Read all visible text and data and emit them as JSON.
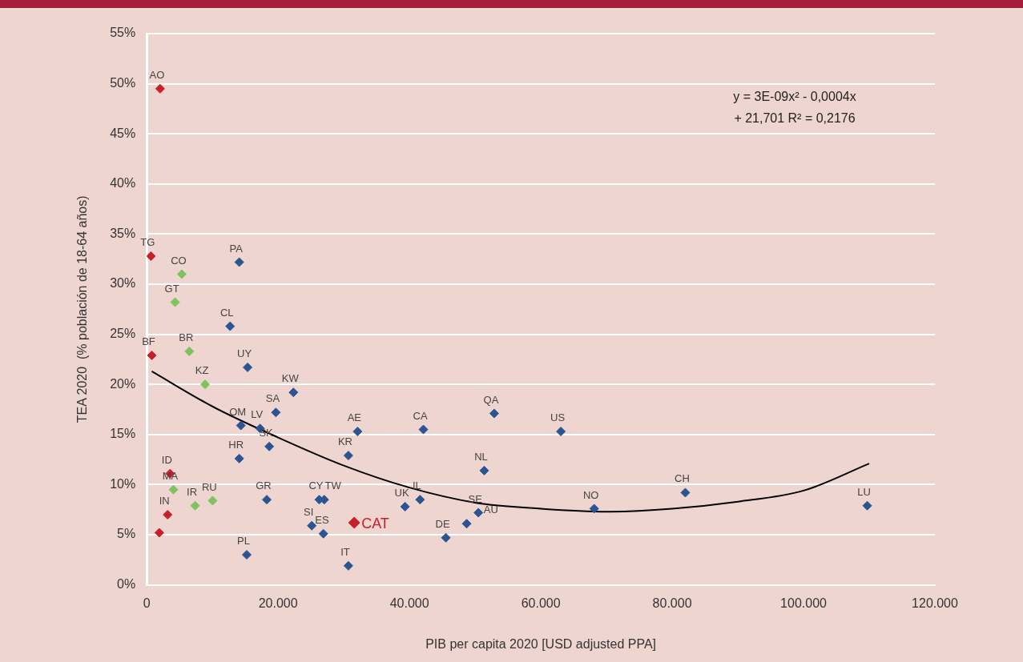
{
  "chart_data": {
    "type": "scatter",
    "xlabel": "PIB per capita 2020 [USD adjusted PPA]",
    "ylabel": "TEA 2020  (% población de 18-64 años)",
    "xlim": [
      0,
      120000
    ],
    "xticks": [
      {
        "value": 0,
        "label": "0"
      },
      {
        "value": 20000,
        "label": "20.000"
      },
      {
        "value": 40000,
        "label": "40.000"
      },
      {
        "value": 60000,
        "label": "60.000"
      },
      {
        "value": 80000,
        "label": "80.000"
      },
      {
        "value": 100000,
        "label": "100.000"
      },
      {
        "value": 120000,
        "label": "120.000"
      }
    ],
    "ylim": [
      0,
      55
    ],
    "yticks": [
      {
        "value": 0,
        "label": "0%"
      },
      {
        "value": 5,
        "label": "5%"
      },
      {
        "value": 10,
        "label": "10%"
      },
      {
        "value": 15,
        "label": "15%"
      },
      {
        "value": 20,
        "label": "20%"
      },
      {
        "value": 25,
        "label": "25%"
      },
      {
        "value": 30,
        "label": "30%"
      },
      {
        "value": 35,
        "label": "35%"
      },
      {
        "value": 40,
        "label": "40%"
      },
      {
        "value": 45,
        "label": "45%"
      },
      {
        "value": 50,
        "label": "50%"
      },
      {
        "value": 55,
        "label": "55%"
      }
    ],
    "grid": "y",
    "legend": false,
    "marker": "diamond",
    "annotations": [
      "y = 3E-09x² - 0,0004x\n+ 21,701 R² = 0,2176"
    ],
    "series": [
      {
        "color": "#c8202a",
        "x": [
          2030,
          630,
          760,
          3550,
          3170,
          1900
        ],
        "values": [
          49.5,
          32.8,
          22.9,
          11.1,
          7.0,
          5.2
        ],
        "value_labels": [
          "AO",
          "TG",
          "BF",
          "ID",
          "IN",
          null
        ]
      },
      {
        "color": "#7fc35f",
        "x": [
          5330,
          4310,
          6470,
          8880,
          4060,
          7360,
          10020
        ],
        "values": [
          31.0,
          28.2,
          23.3,
          20.0,
          9.5,
          7.9,
          8.4
        ],
        "value_labels": [
          "CO",
          "GT",
          "BR",
          "KZ",
          "MA",
          "IR",
          "RU"
        ]
      },
      {
        "color": "#2a5592",
        "x": [
          14080,
          12690,
          15350,
          22330,
          19660,
          14330,
          17250,
          18650,
          14080,
          18270,
          26260,
          27020,
          25120,
          26890,
          15220,
          30700,
          30700,
          32090,
          42120,
          52900,
          63050,
          51380,
          41610,
          39330,
          50490,
          48710,
          45540,
          68120,
          82000,
          109700
        ],
        "values": [
          32.2,
          25.8,
          21.7,
          19.2,
          17.2,
          15.9,
          15.6,
          13.8,
          12.6,
          8.5,
          8.5,
          8.5,
          5.9,
          5.1,
          3.0,
          1.9,
          12.9,
          15.3,
          15.5,
          17.1,
          15.3,
          11.4,
          8.5,
          7.8,
          7.2,
          6.1,
          4.7,
          7.6,
          9.2,
          7.9
        ],
        "value_labels": [
          "PA",
          "CL",
          "UY",
          "KW",
          "SA",
          "OM",
          "LV",
          "SK",
          "HR",
          "GR",
          "CY",
          "TW",
          "SI",
          "ES",
          "PL",
          "IT",
          "KR",
          "AE",
          "CA",
          "QA",
          "US",
          "NL",
          "IL",
          "UK",
          "SE",
          "AU",
          "DE",
          "NO",
          "CH",
          "LU"
        ]
      },
      {
        "name": "CAT",
        "color": "#c8202a",
        "x": [
          31590
        ],
        "values": [
          6.2
        ]
      },
      {
        "type": "line",
        "color": "#000000",
        "marker": "none",
        "x": [
          760,
          10000,
          20000,
          30000,
          40000,
          50000,
          60000,
          70000,
          80000,
          90000,
          100000,
          110000
        ],
        "values": [
          21.3,
          17.8,
          14.7,
          11.9,
          9.7,
          8.2,
          7.6,
          7.3,
          7.6,
          8.3,
          9.4,
          12.1
        ]
      }
    ]
  }
}
